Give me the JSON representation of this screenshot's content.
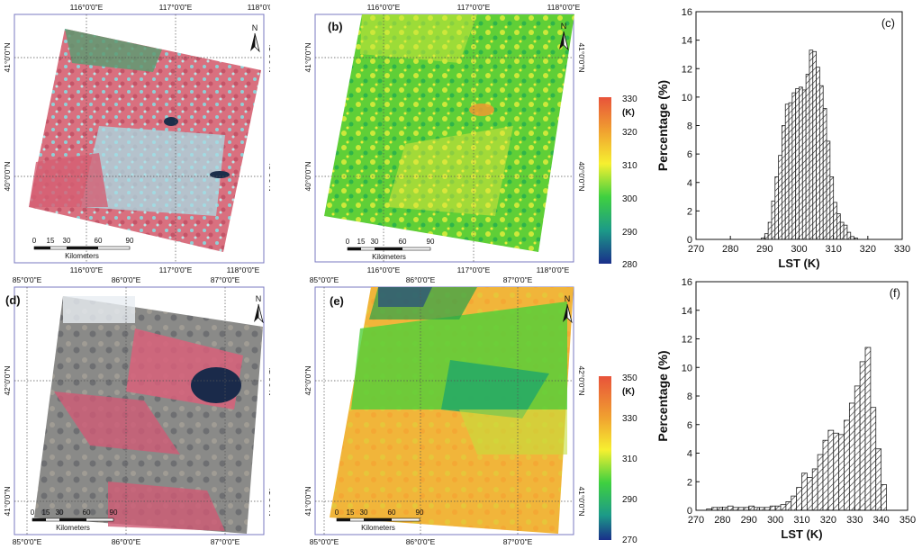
{
  "maps": {
    "a": {
      "label": "",
      "lon_ticks": [
        "116°0'0\"E",
        "117°0'0\"E",
        "118°0'0\"E"
      ],
      "lat_ticks": [
        "41°0'0\"N",
        "40°0'0\"N"
      ],
      "scale": {
        "ticks": [
          "0",
          "15",
          "30",
          "60",
          "90"
        ],
        "unit": "Kilometers"
      },
      "north": "N"
    },
    "b": {
      "label": "(b)",
      "lon_ticks": [
        "116°0'0\"E",
        "117°0'0\"E",
        "118°0'0\"E"
      ],
      "lat_ticks": [
        "41°0'0\"N",
        "40°0'0\"N"
      ],
      "scale": {
        "ticks": [
          "0",
          "15",
          "30",
          "60",
          "90"
        ],
        "unit": "Kilometers"
      },
      "north": "N",
      "colorbar": {
        "unit": "(K)",
        "ticks": [
          "330",
          "320",
          "310",
          "300",
          "290",
          "280"
        ]
      }
    },
    "d": {
      "label": "(d)",
      "lon_ticks": [
        "85°0'0\"E",
        "86°0'0\"E",
        "87°0'0\"E"
      ],
      "lat_ticks": [
        "42°0'0\"N",
        "41°0'0\"N"
      ],
      "scale": {
        "ticks": [
          "0",
          "15",
          "30",
          "60",
          "90"
        ],
        "unit": "Kilometers"
      },
      "north": "N"
    },
    "e": {
      "label": "(e)",
      "lon_ticks": [
        "85°0'0\"E",
        "86°0'0\"E",
        "87°0'0\"E"
      ],
      "lat_ticks": [
        "42°0'0\"N",
        "41°0'0\"N"
      ],
      "scale": {
        "ticks": [
          "0",
          "15",
          "30",
          "60",
          "90"
        ],
        "unit": "Kilometers"
      },
      "north": "N",
      "colorbar": {
        "unit": "(K)",
        "ticks": [
          "350",
          "330",
          "310",
          "290",
          "270"
        ]
      }
    }
  },
  "chart_data": [
    {
      "type": "bar",
      "panel_label": "(c)",
      "xlabel": "LST (K)",
      "ylabel": "Percentage (%)",
      "xlim": [
        270,
        330
      ],
      "ylim": [
        0,
        16
      ],
      "x_ticks": [
        270,
        280,
        290,
        300,
        310,
        320,
        330
      ],
      "y_ticks": [
        0,
        2,
        4,
        6,
        8,
        10,
        12,
        14,
        16
      ],
      "bin_width": 1,
      "bin_starts": [
        289,
        290,
        291,
        292,
        293,
        294,
        295,
        296,
        297,
        298,
        299,
        300,
        301,
        302,
        303,
        304,
        305,
        306,
        307,
        308,
        309,
        310,
        311,
        312,
        313,
        314,
        315,
        316
      ],
      "values": [
        0.1,
        0.4,
        1.2,
        2.7,
        4.4,
        5.9,
        8.0,
        9.5,
        9.6,
        10.3,
        10.6,
        10.7,
        10.5,
        11.6,
        13.3,
        13.2,
        12.1,
        10.8,
        9.2,
        6.9,
        4.4,
        2.6,
        1.8,
        1.2,
        1.0,
        0.5,
        0.2,
        0.1
      ]
    },
    {
      "type": "bar",
      "panel_label": "(f)",
      "xlabel": "LST (K)",
      "ylabel": "Percentage (%)",
      "xlim": [
        270,
        350
      ],
      "ylim": [
        0,
        16
      ],
      "x_ticks": [
        270,
        280,
        290,
        300,
        310,
        320,
        330,
        340,
        350
      ],
      "y_ticks": [
        0,
        2,
        4,
        6,
        8,
        10,
        12,
        14,
        16
      ],
      "bin_width": 2,
      "bin_starts": [
        274,
        276,
        278,
        280,
        282,
        284,
        286,
        288,
        290,
        292,
        294,
        296,
        298,
        300,
        302,
        304,
        306,
        308,
        310,
        312,
        314,
        316,
        318,
        320,
        322,
        324,
        326,
        328,
        330,
        332,
        334,
        336,
        338,
        340
      ],
      "values": [
        0.1,
        0.2,
        0.2,
        0.2,
        0.3,
        0.2,
        0.2,
        0.2,
        0.3,
        0.2,
        0.2,
        0.2,
        0.3,
        0.3,
        0.4,
        0.6,
        1.0,
        1.6,
        2.6,
        2.3,
        2.9,
        3.9,
        4.9,
        5.6,
        5.4,
        5.3,
        6.3,
        7.5,
        8.7,
        10.4,
        11.4,
        7.2,
        4.3,
        1.8
      ]
    }
  ],
  "colors": {
    "map_frame": "#7a78c0",
    "bar_hatch": "#222222"
  }
}
